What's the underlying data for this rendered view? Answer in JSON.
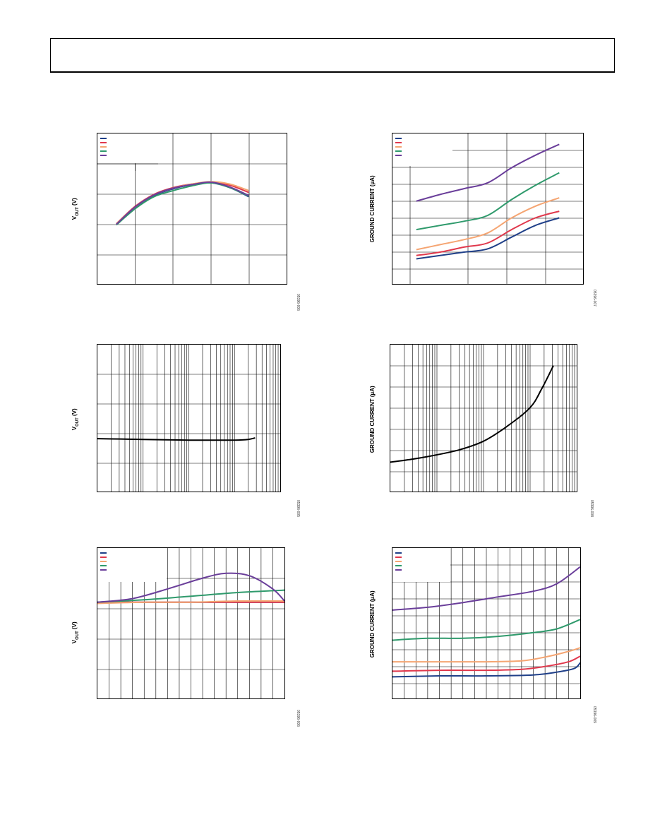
{
  "header": {
    "title": ""
  },
  "colors": {
    "navy": "#1f3f88",
    "red": "#e0384c",
    "orange": "#f5a572",
    "green": "#2f9a6c",
    "purple": "#6a3e9a",
    "black": "#000000"
  },
  "panels": [
    {
      "id": "p1",
      "ylabel_main": "V",
      "ylabel_sub": "OUT",
      "ylabel_unit": " (V)",
      "fig_id": "05396-006",
      "chart_data": {
        "type": "line",
        "grid": "x5 y5",
        "legend": "top-left",
        "series": [
          {
            "color": "navy",
            "values": [
              [
                0.5,
                3.0
              ],
              [
                1.0,
                3.27
              ],
              [
                1.5,
                3.47
              ],
              [
                2.0,
                3.58
              ],
              [
                2.5,
                3.65
              ],
              [
                3.0,
                3.68
              ],
              [
                3.5,
                3.6
              ],
              [
                4.0,
                3.45
              ]
            ]
          },
          {
            "color": "red",
            "values": [
              [
                0.5,
                3.0
              ],
              [
                1.0,
                3.29
              ],
              [
                1.5,
                3.49
              ],
              [
                2.0,
                3.6
              ],
              [
                2.5,
                3.66
              ],
              [
                3.0,
                3.69
              ],
              [
                3.5,
                3.64
              ],
              [
                4.0,
                3.52
              ]
            ]
          },
          {
            "color": "orange",
            "values": [
              [
                0.5,
                3.0
              ],
              [
                1.0,
                3.28
              ],
              [
                1.5,
                3.48
              ],
              [
                2.0,
                3.59
              ],
              [
                2.5,
                3.66
              ],
              [
                3.0,
                3.7
              ],
              [
                3.5,
                3.66
              ],
              [
                4.0,
                3.55
              ]
            ]
          },
          {
            "color": "green",
            "values": [
              [
                0.5,
                2.98
              ],
              [
                1.0,
                3.25
              ],
              [
                1.5,
                3.45
              ],
              [
                2.0,
                3.55
              ],
              [
                2.5,
                3.63
              ],
              [
                3.0,
                3.68
              ],
              [
                3.5,
                3.6
              ],
              [
                4.0,
                3.46
              ]
            ]
          },
          {
            "color": "purple",
            "values": [
              [
                0.5,
                2.99
              ],
              [
                1.0,
                3.28
              ],
              [
                1.5,
                3.48
              ],
              [
                2.0,
                3.59
              ],
              [
                2.5,
                3.65
              ],
              [
                3.0,
                3.69
              ],
              [
                3.5,
                3.61
              ],
              [
                4.0,
                3.47
              ]
            ]
          }
        ]
      }
    },
    {
      "id": "p2",
      "ylabel_main": "GROUND CURRENT (µA)",
      "ylabel_sub": "",
      "ylabel_unit": "",
      "fig_id": "05396-007",
      "chart_data": {
        "type": "line",
        "grid": "x5 y9",
        "legend": "top-left",
        "series": [
          {
            "color": "navy",
            "values": [
              [
                0.5,
                1.5
              ],
              [
                1.0,
                1.7
              ],
              [
                1.5,
                1.9
              ],
              [
                2.0,
                2.1
              ],
              [
                2.5,
                2.8
              ],
              [
                3.0,
                3.5
              ],
              [
                3.5,
                3.95
              ]
            ]
          },
          {
            "color": "red",
            "values": [
              [
                0.5,
                1.7
              ],
              [
                1.0,
                1.9
              ],
              [
                1.5,
                2.2
              ],
              [
                2.0,
                2.45
              ],
              [
                2.5,
                3.25
              ],
              [
                3.0,
                3.95
              ],
              [
                3.5,
                4.35
              ]
            ]
          },
          {
            "color": "orange",
            "values": [
              [
                0.5,
                2.05
              ],
              [
                1.0,
                2.35
              ],
              [
                1.5,
                2.65
              ],
              [
                2.0,
                3.05
              ],
              [
                2.5,
                3.95
              ],
              [
                3.0,
                4.65
              ],
              [
                3.5,
                5.15
              ]
            ]
          },
          {
            "color": "green",
            "values": [
              [
                0.5,
                3.25
              ],
              [
                1.0,
                3.5
              ],
              [
                1.5,
                3.75
              ],
              [
                2.0,
                4.1
              ],
              [
                2.5,
                5.05
              ],
              [
                3.0,
                5.9
              ],
              [
                3.5,
                6.65
              ]
            ]
          },
          {
            "color": "purple",
            "values": [
              [
                0.5,
                4.95
              ],
              [
                1.0,
                5.35
              ],
              [
                1.5,
                5.7
              ],
              [
                2.0,
                6.05
              ],
              [
                2.5,
                6.95
              ],
              [
                3.0,
                7.7
              ],
              [
                3.5,
                8.35
              ]
            ]
          }
        ]
      }
    },
    {
      "id": "p3",
      "ylabel_main": "V",
      "ylabel_sub": "OUT",
      "ylabel_unit": " (V)",
      "fig_id": "05396-005",
      "chart_data": {
        "type": "line",
        "grid": "log-x 4 decades, y5",
        "legend": "none",
        "series": [
          {
            "color": "black",
            "values": [
              [
                0.0,
                3.22
              ],
              [
                0.5,
                3.215
              ],
              [
                1.0,
                3.21
              ],
              [
                1.5,
                3.205
              ],
              [
                2.0,
                3.2
              ],
              [
                2.5,
                3.2
              ],
              [
                3.0,
                3.2
              ],
              [
                3.3,
                3.21
              ],
              [
                3.45,
                3.23
              ]
            ]
          }
        ]
      }
    },
    {
      "id": "p4",
      "ylabel_main": "GROUND CURRENT (µA)",
      "ylabel_sub": "",
      "ylabel_unit": "",
      "fig_id": "05396-008",
      "chart_data": {
        "type": "line",
        "grid": "log-x 4 decades, y7",
        "legend": "none",
        "series": [
          {
            "color": "black",
            "values": [
              [
                0.0,
                2.4
              ],
              [
                0.5,
                2.55
              ],
              [
                1.0,
                2.75
              ],
              [
                1.5,
                3.0
              ],
              [
                2.0,
                3.4
              ],
              [
                2.5,
                4.1
              ],
              [
                3.0,
                5.0
              ],
              [
                3.25,
                5.9
              ],
              [
                3.5,
                7.0
              ]
            ]
          }
        ]
      }
    },
    {
      "id": "p5",
      "ylabel_main": "V",
      "ylabel_sub": "OUT",
      "ylabel_unit": " (V)",
      "fig_id": "05396-006",
      "chart_data": {
        "type": "line",
        "grid": "x16 y5",
        "legend": "top-left",
        "series": [
          {
            "color": "navy",
            "values": [
              [
                0,
                3.3
              ],
              [
                4,
                3.3
              ],
              [
                8,
                3.3
              ],
              [
                12,
                3.3
              ],
              [
                16,
                3.3
              ]
            ]
          },
          {
            "color": "red",
            "values": [
              [
                0,
                3.3
              ],
              [
                4,
                3.3
              ],
              [
                8,
                3.3
              ],
              [
                12,
                3.3
              ],
              [
                16,
                3.3
              ]
            ]
          },
          {
            "color": "orange",
            "values": [
              [
                0,
                3.29
              ],
              [
                4,
                3.3
              ],
              [
                8,
                3.3
              ],
              [
                12,
                3.31
              ],
              [
                16,
                3.31
              ]
            ]
          },
          {
            "color": "green",
            "values": [
              [
                0,
                3.3
              ],
              [
                4,
                3.32
              ],
              [
                8,
                3.35
              ],
              [
                12,
                3.38
              ],
              [
                16,
                3.4
              ]
            ]
          },
          {
            "color": "purple",
            "values": [
              [
                0,
                3.3
              ],
              [
                3,
                3.33
              ],
              [
                6,
                3.41
              ],
              [
                9,
                3.5
              ],
              [
                11,
                3.54
              ],
              [
                13,
                3.52
              ],
              [
                15,
                3.41
              ],
              [
                16,
                3.31
              ]
            ]
          }
        ]
      }
    },
    {
      "id": "p6",
      "ylabel_main": "GROUND CURRENT (µA)",
      "ylabel_sub": "",
      "ylabel_unit": "",
      "fig_id": "05396-009",
      "chart_data": {
        "type": "line",
        "grid": "x16 y9",
        "legend": "top-left",
        "series": [
          {
            "color": "navy",
            "values": [
              [
                0,
                2.15
              ],
              [
                4,
                2.2
              ],
              [
                8,
                2.2
              ],
              [
                12,
                2.25
              ],
              [
                14,
                2.4
              ],
              [
                15.5,
                2.6
              ],
              [
                16,
                2.9
              ]
            ]
          },
          {
            "color": "red",
            "values": [
              [
                0,
                2.45
              ],
              [
                4,
                2.5
              ],
              [
                8,
                2.5
              ],
              [
                11,
                2.55
              ],
              [
                13,
                2.7
              ],
              [
                15,
                2.95
              ],
              [
                16,
                3.25
              ]
            ]
          },
          {
            "color": "orange",
            "values": [
              [
                0,
                2.95
              ],
              [
                4,
                2.95
              ],
              [
                8,
                2.95
              ],
              [
                11,
                3.0
              ],
              [
                13,
                3.2
              ],
              [
                15,
                3.5
              ],
              [
                16,
                3.7
              ]
            ]
          },
          {
            "color": "green",
            "values": [
              [
                0,
                4.1
              ],
              [
                3,
                4.2
              ],
              [
                6,
                4.2
              ],
              [
                9,
                4.3
              ],
              [
                12,
                4.5
              ],
              [
                14,
                4.7
              ],
              [
                16,
                5.2
              ]
            ]
          },
          {
            "color": "purple",
            "values": [
              [
                0,
                5.7
              ],
              [
                3,
                5.85
              ],
              [
                6,
                6.1
              ],
              [
                9,
                6.4
              ],
              [
                12,
                6.7
              ],
              [
                14,
                7.1
              ],
              [
                16,
                8.0
              ]
            ]
          }
        ]
      }
    }
  ]
}
